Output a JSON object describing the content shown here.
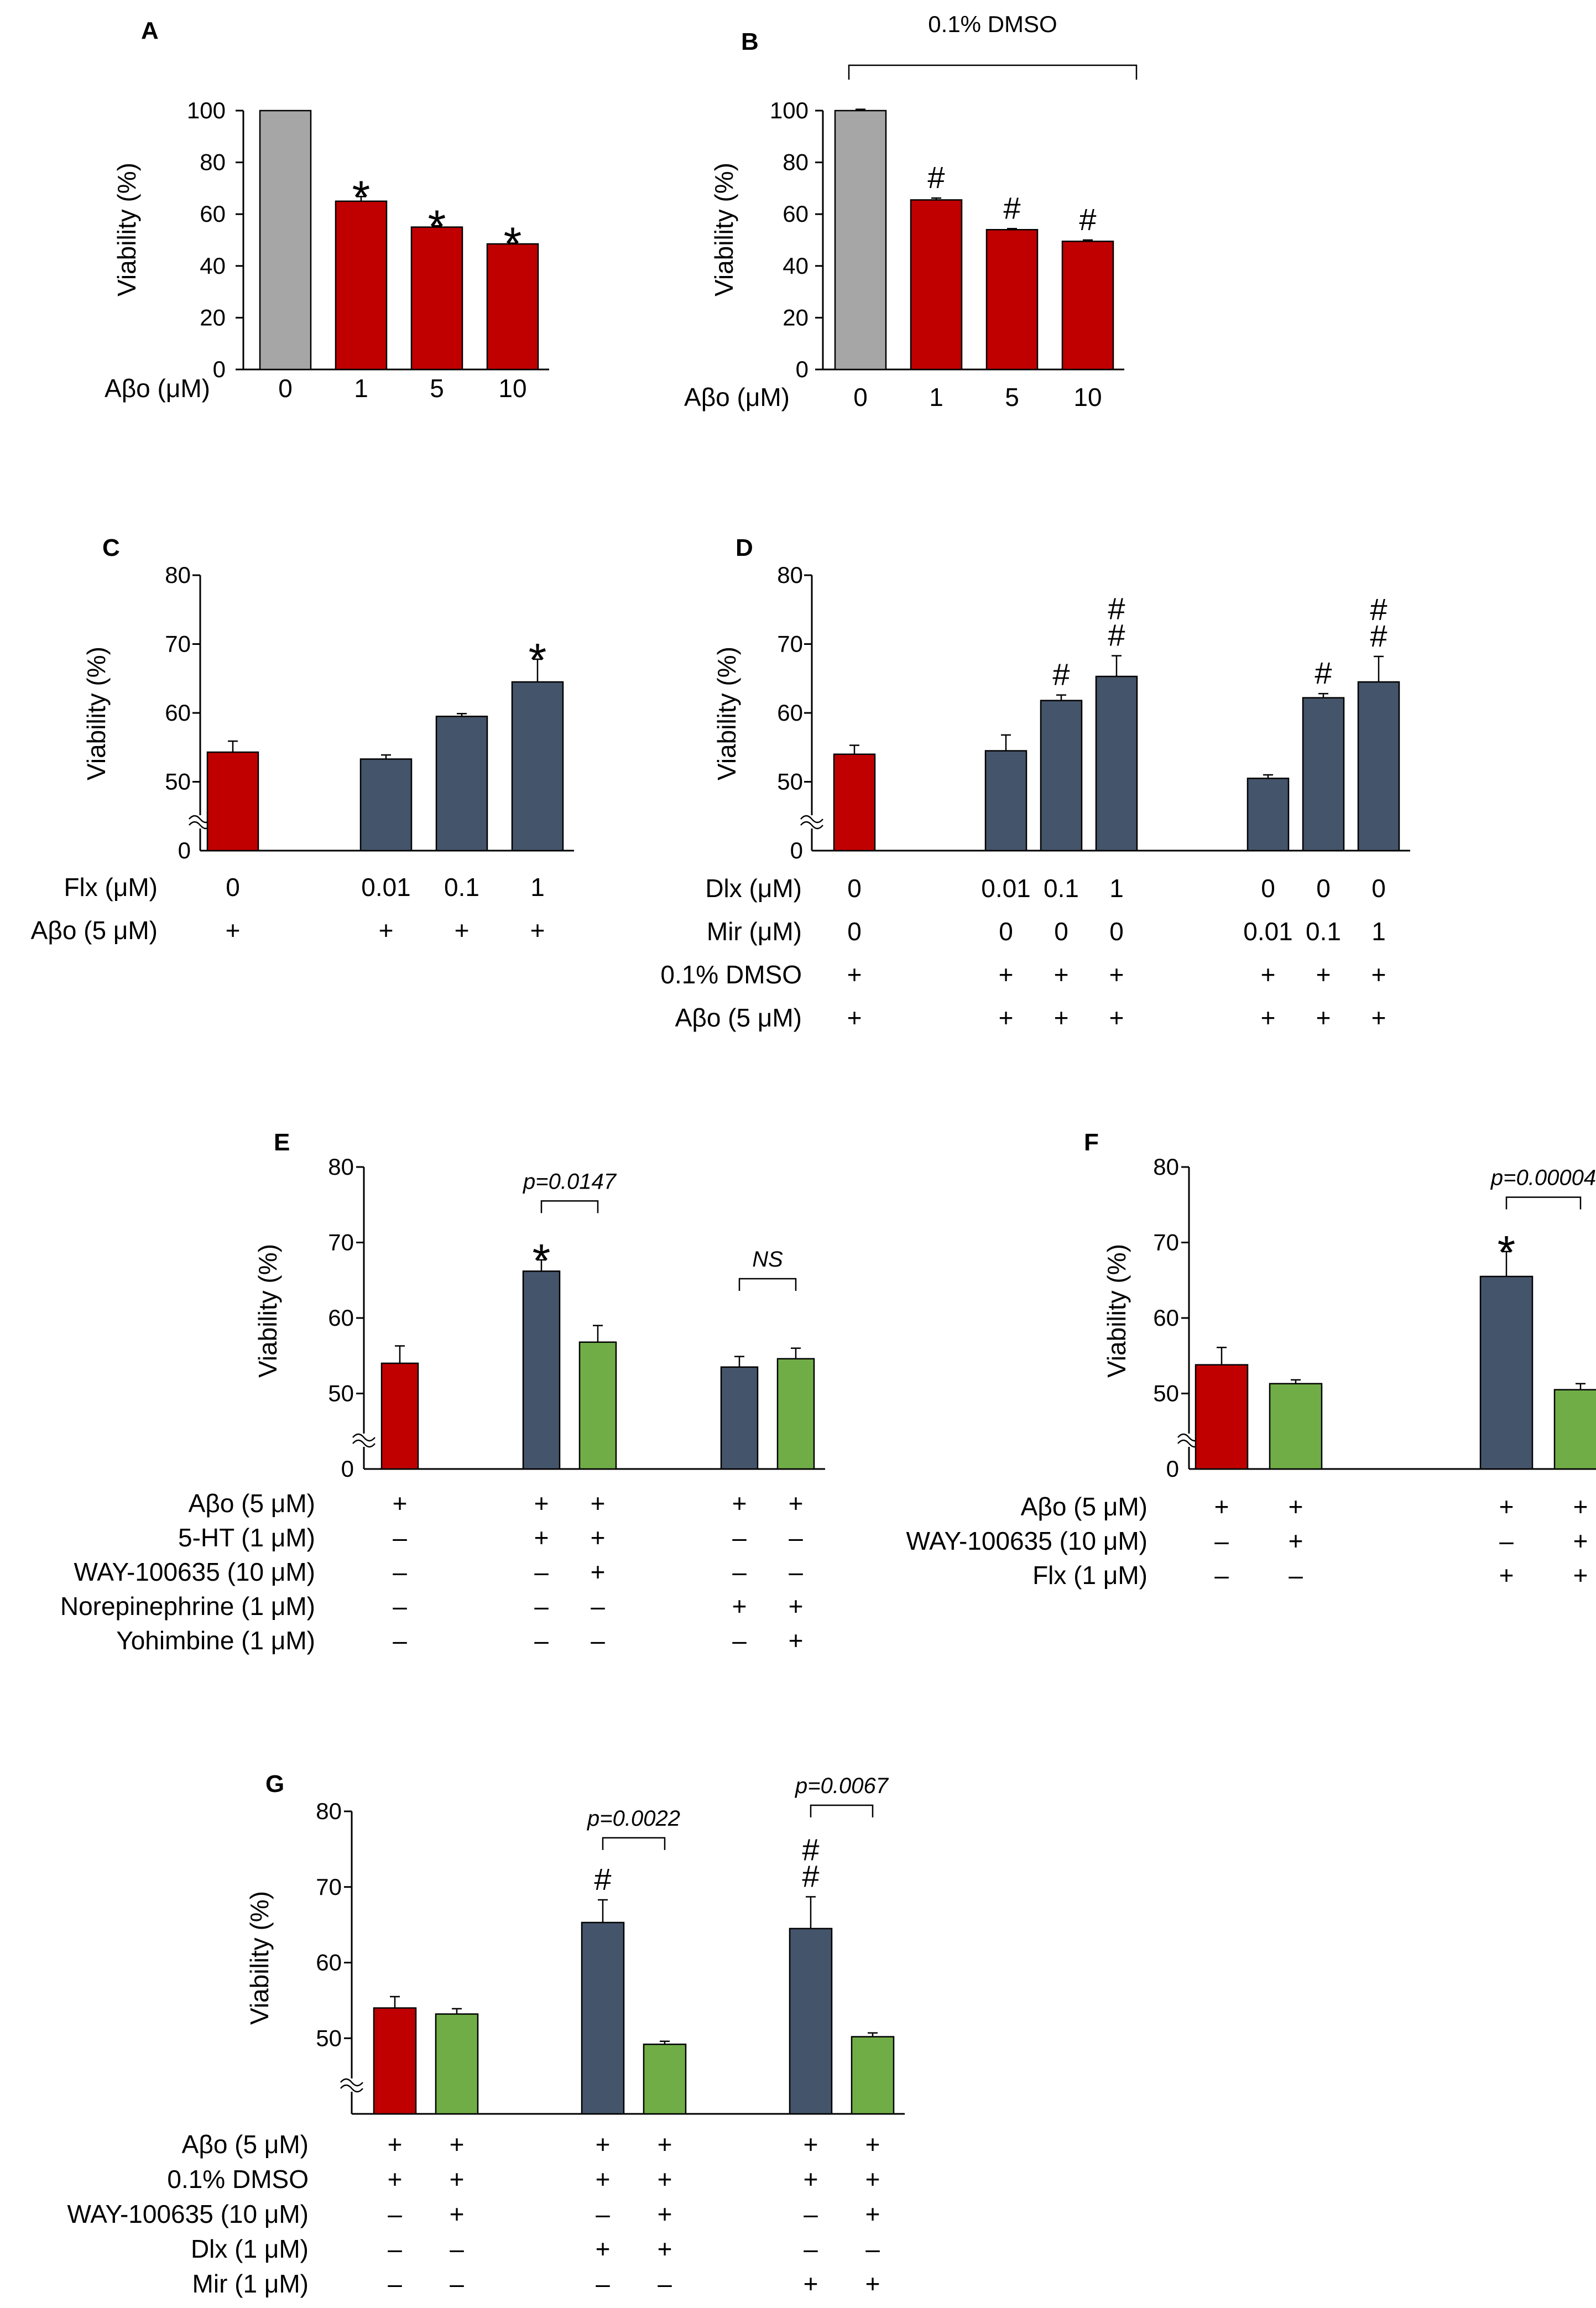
{
  "colors": {
    "gray": "#a6a6a6",
    "red": "#c00000",
    "slate": "#44546a",
    "green": "#70ad47"
  },
  "chart_data": [
    {
      "id": "A",
      "type": "bar",
      "panel_letter": "A",
      "ylabel": "Viability (%)",
      "ylim": [
        0,
        100
      ],
      "yticks": [
        0,
        20,
        40,
        60,
        80,
        100
      ],
      "axis_break": false,
      "bracket": null,
      "row_labels": [
        "Aβo (μM)"
      ],
      "groups": [
        {
          "bars": [
            {
              "value": 100,
              "err": 0,
              "color": "gray",
              "mark": "",
              "cond": [
                "0"
              ]
            },
            {
              "value": 65,
              "err": 1.8,
              "color": "red",
              "mark": "*",
              "cond": [
                "1"
              ]
            },
            {
              "value": 55,
              "err": 0.5,
              "color": "red",
              "mark": "*",
              "cond": [
                "5"
              ]
            },
            {
              "value": 48.5,
              "err": 0.3,
              "color": "red",
              "mark": "*",
              "cond": [
                "10"
              ]
            }
          ]
        }
      ],
      "comparisons": []
    },
    {
      "id": "B",
      "type": "bar",
      "panel_letter": "B",
      "ylabel": "Viability (%)",
      "ylim": [
        0,
        100
      ],
      "yticks": [
        0,
        20,
        40,
        60,
        80,
        100
      ],
      "axis_break": false,
      "bracket": {
        "label": "0.1% DMSO"
      },
      "row_labels": [
        "Aβo (μM)"
      ],
      "groups": [
        {
          "bars": [
            {
              "value": 100,
              "err": 0.5,
              "color": "gray",
              "mark": "",
              "cond": [
                "0"
              ]
            },
            {
              "value": 65.5,
              "err": 0.7,
              "color": "red",
              "mark": "#",
              "cond": [
                "1"
              ]
            },
            {
              "value": 54,
              "err": 0.4,
              "color": "red",
              "mark": "#",
              "cond": [
                "5"
              ]
            },
            {
              "value": 49.5,
              "err": 0.5,
              "color": "red",
              "mark": "#",
              "cond": [
                "10"
              ]
            }
          ]
        }
      ],
      "comparisons": []
    },
    {
      "id": "C",
      "type": "bar",
      "panel_letter": "C",
      "ylabel": "Viability (%)",
      "ylim": [
        40,
        80
      ],
      "yticks": [
        50,
        60,
        70,
        80
      ],
      "ybottom_label": "0",
      "axis_break": true,
      "bracket": null,
      "row_labels": [
        "Flx (μM)",
        "Aβo (5 μM)"
      ],
      "groups": [
        {
          "bars": [
            {
              "value": 54.3,
              "err": 1.6,
              "color": "red",
              "mark": "",
              "cond": [
                "0",
                "+"
              ]
            }
          ]
        },
        {
          "bars": [
            {
              "value": 53.3,
              "err": 0.6,
              "color": "slate",
              "mark": "",
              "cond": [
                "0.01",
                "+"
              ]
            },
            {
              "value": 59.5,
              "err": 0.4,
              "color": "slate",
              "mark": "",
              "cond": [
                "0.1",
                "+"
              ]
            },
            {
              "value": 64.5,
              "err": 3.3,
              "color": "slate",
              "mark": "*",
              "cond": [
                "1",
                "+"
              ]
            }
          ]
        }
      ],
      "comparisons": []
    },
    {
      "id": "D",
      "type": "bar",
      "panel_letter": "D",
      "ylabel": "Viability (%)",
      "ylim": [
        40,
        80
      ],
      "yticks": [
        50,
        60,
        70,
        80
      ],
      "ybottom_label": "0",
      "axis_break": true,
      "bracket": null,
      "row_labels": [
        "Dlx (μM)",
        "Mir (μM)",
        "0.1% DMSO",
        "Aβo (5 μM)"
      ],
      "groups": [
        {
          "bars": [
            {
              "value": 54,
              "err": 1.3,
              "color": "red",
              "mark": "",
              "cond": [
                "0",
                "0",
                "+",
                "+"
              ]
            }
          ]
        },
        {
          "bars": [
            {
              "value": 54.5,
              "err": 2.3,
              "color": "slate",
              "mark": "",
              "cond": [
                "0.01",
                "0",
                "+",
                "+"
              ]
            },
            {
              "value": 61.8,
              "err": 0.8,
              "color": "slate",
              "mark": "#",
              "cond": [
                "0.1",
                "0",
                "+",
                "+"
              ]
            },
            {
              "value": 65.3,
              "err": 3,
              "color": "slate",
              "mark": "##",
              "cond": [
                "1",
                "0",
                "+",
                "+"
              ]
            }
          ]
        },
        {
          "bars": [
            {
              "value": 50.5,
              "err": 0.5,
              "color": "slate",
              "mark": "",
              "cond": [
                "0",
                "0.01",
                "+",
                "+"
              ]
            },
            {
              "value": 62.2,
              "err": 0.6,
              "color": "slate",
              "mark": "#",
              "cond": [
                "0",
                "0.1",
                "+",
                "+"
              ]
            },
            {
              "value": 64.5,
              "err": 3.7,
              "color": "slate",
              "mark": "##",
              "cond": [
                "0",
                "1",
                "+",
                "+"
              ]
            }
          ]
        }
      ],
      "comparisons": []
    },
    {
      "id": "E",
      "type": "bar",
      "panel_letter": "E",
      "ylabel": "Viability (%)",
      "ylim": [
        40,
        80
      ],
      "yticks": [
        50,
        60,
        70,
        80
      ],
      "ybottom_label": "0",
      "axis_break": true,
      "bracket": null,
      "row_labels": [
        "Aβo (5 μM)",
        "5-HT (1 μM)",
        "WAY-100635 (10 μM)",
        "Norepinephrine (1 μM)",
        "Yohimbine (1 μM)"
      ],
      "groups": [
        {
          "bars": [
            {
              "value": 54,
              "err": 2.3,
              "color": "red",
              "mark": "",
              "cond": [
                "+",
                "–",
                "–",
                "–",
                "–"
              ]
            }
          ]
        },
        {
          "bars": [
            {
              "value": 66.2,
              "err": 1.5,
              "color": "slate",
              "mark": "*",
              "cond": [
                "+",
                "+",
                "–",
                "–",
                "–"
              ]
            },
            {
              "value": 56.8,
              "err": 2.2,
              "color": "green",
              "mark": "",
              "cond": [
                "+",
                "+",
                "+",
                "–",
                "–"
              ]
            }
          ]
        },
        {
          "bars": [
            {
              "value": 53.5,
              "err": 1.4,
              "color": "slate",
              "mark": "",
              "cond": [
                "+",
                "–",
                "–",
                "+",
                "–"
              ]
            },
            {
              "value": 54.6,
              "err": 1.4,
              "color": "green",
              "mark": "",
              "cond": [
                "+",
                "–",
                "–",
                "+",
                "+"
              ]
            }
          ]
        }
      ],
      "comparisons": [
        {
          "group": 1,
          "from": 0,
          "to": 1,
          "label": "p=0.0147",
          "level": 75.5
        },
        {
          "group": 2,
          "from": 0,
          "to": 1,
          "label": "NS",
          "level": 65.2
        }
      ]
    },
    {
      "id": "F",
      "type": "bar",
      "panel_letter": "F",
      "ylabel": "Viability (%)",
      "ylim": [
        40,
        80
      ],
      "yticks": [
        50,
        60,
        70,
        80
      ],
      "ybottom_label": "0",
      "axis_break": true,
      "bracket": null,
      "row_labels": [
        "Aβo (5 μM)",
        "WAY-100635 (10 μM)",
        "Flx (1 μM)"
      ],
      "groups": [
        {
          "bars": [
            {
              "value": 53.8,
              "err": 2.3,
              "color": "red",
              "mark": "",
              "cond": [
                "+",
                "–",
                "–"
              ]
            },
            {
              "value": 51.3,
              "err": 0.5,
              "color": "green",
              "mark": "",
              "cond": [
                "+",
                "+",
                "–"
              ]
            }
          ]
        },
        {
          "bars": [
            {
              "value": 65.5,
              "err": 3.3,
              "color": "slate",
              "mark": "*",
              "cond": [
                "+",
                "–",
                "+"
              ]
            },
            {
              "value": 50.5,
              "err": 0.8,
              "color": "green",
              "mark": "",
              "cond": [
                "+",
                "+",
                "+"
              ]
            }
          ]
        }
      ],
      "comparisons": [
        {
          "group": 1,
          "from": 0,
          "to": 1,
          "label": "p=0.00004",
          "level": 76
        }
      ]
    },
    {
      "id": "G",
      "type": "bar",
      "panel_letter": "G",
      "ylabel": "Viability (%)",
      "ylim": [
        40,
        80
      ],
      "yticks": [
        50,
        60,
        70,
        80
      ],
      "ybottom_label": "",
      "axis_break": true,
      "bracket": null,
      "row_labels": [
        "Aβo (5 μM)",
        "0.1% DMSO",
        "WAY-100635 (10 μM)",
        "Dlx (1 μM)",
        "Mir (1 μM)"
      ],
      "groups": [
        {
          "bars": [
            {
              "value": 54,
              "err": 1.5,
              "color": "red",
              "mark": "",
              "cond": [
                "+",
                "+",
                "–",
                "–",
                "–"
              ]
            },
            {
              "value": 53.2,
              "err": 0.7,
              "color": "green",
              "mark": "",
              "cond": [
                "+",
                "+",
                "+",
                "–",
                "–"
              ]
            }
          ]
        },
        {
          "bars": [
            {
              "value": 65.3,
              "err": 3,
              "color": "slate",
              "mark": "#",
              "cond": [
                "+",
                "+",
                "–",
                "+",
                "–"
              ]
            },
            {
              "value": 49.2,
              "err": 0.4,
              "color": "green",
              "mark": "",
              "cond": [
                "+",
                "+",
                "+",
                "+",
                "–"
              ]
            }
          ]
        },
        {
          "bars": [
            {
              "value": 64.5,
              "err": 4.2,
              "color": "slate",
              "mark": "##",
              "cond": [
                "+",
                "+",
                "–",
                "–",
                "+"
              ]
            },
            {
              "value": 50.2,
              "err": 0.5,
              "color": "green",
              "mark": "",
              "cond": [
                "+",
                "+",
                "+",
                "–",
                "+"
              ]
            }
          ]
        }
      ],
      "comparisons": [
        {
          "group": 1,
          "from": 0,
          "to": 1,
          "label": "p=0.0022",
          "level": 76.5
        },
        {
          "group": 2,
          "from": 0,
          "to": 1,
          "label": "p=0.0067",
          "level": 80.8
        }
      ]
    }
  ]
}
